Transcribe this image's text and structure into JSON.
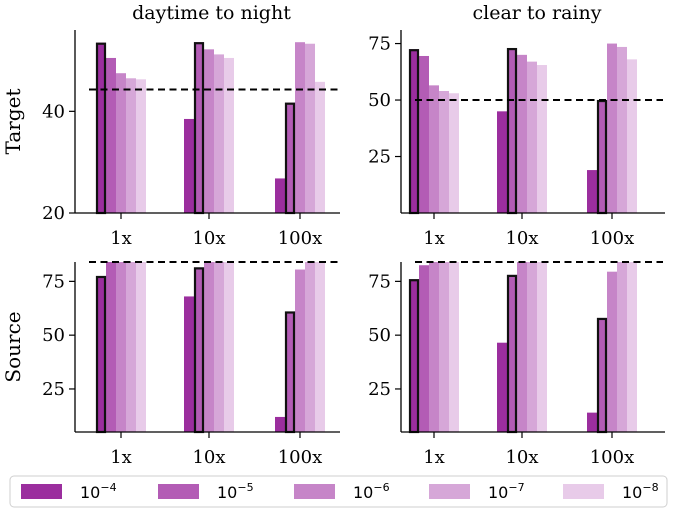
{
  "colors": [
    "#9b2e9e",
    "#b35cb5",
    "#c685c8",
    "#d6a7d8",
    "#e8cbe9"
  ],
  "legend": {
    "entries": [
      {
        "base": "10",
        "exp": "−4"
      },
      {
        "base": "10",
        "exp": "−5"
      },
      {
        "base": "10",
        "exp": "−6"
      },
      {
        "base": "10",
        "exp": "−7"
      },
      {
        "base": "10",
        "exp": "−8"
      }
    ]
  },
  "chart_data": [
    {
      "type": "bar",
      "panel": "top-left",
      "title": "daytime to night",
      "ylabel": "Target",
      "categories": [
        "1x",
        "10x",
        "100x"
      ],
      "ylim": [
        20,
        56
      ],
      "yticks": [
        20,
        40
      ],
      "baseline": 44.3,
      "highlight_series": [
        0,
        1,
        1
      ],
      "series": [
        {
          "values": [
            53.5,
            38.5,
            26.8
          ]
        },
        {
          "values": [
            50.5,
            53.6,
            41.7
          ]
        },
        {
          "values": [
            47.5,
            52.2,
            53.6
          ]
        },
        {
          "values": [
            46.5,
            51.2,
            53.3
          ]
        },
        {
          "values": [
            46.3,
            50.5,
            45.8
          ]
        }
      ]
    },
    {
      "type": "bar",
      "panel": "top-right",
      "title": "clear to rainy",
      "ylabel": "",
      "categories": [
        "1x",
        "10x",
        "100x"
      ],
      "ylim": [
        0,
        81
      ],
      "yticks": [
        25,
        50,
        75
      ],
      "baseline": 50,
      "highlight_series": [
        0,
        1,
        1
      ],
      "series": [
        {
          "values": [
            72.5,
            45,
            19
          ]
        },
        {
          "values": [
            69.5,
            73,
            50
          ]
        },
        {
          "values": [
            56.5,
            70,
            75
          ]
        },
        {
          "values": [
            54,
            67,
            73.5
          ]
        },
        {
          "values": [
            53,
            65.5,
            68
          ]
        }
      ]
    },
    {
      "type": "bar",
      "panel": "bottom-left",
      "title": "",
      "ylabel": "Source",
      "categories": [
        "1x",
        "10x",
        "100x"
      ],
      "ylim": [
        5,
        84
      ],
      "yticks": [
        25,
        50,
        75
      ],
      "baseline": 84,
      "highlight_series": [
        0,
        1,
        1
      ],
      "series": [
        {
          "values": [
            77.5,
            68,
            12
          ]
        },
        {
          "values": [
            84,
            81.5,
            61
          ]
        },
        {
          "values": [
            84,
            84,
            80.5
          ]
        },
        {
          "values": [
            84,
            84,
            84
          ]
        },
        {
          "values": [
            84,
            84,
            84
          ]
        }
      ]
    },
    {
      "type": "bar",
      "panel": "bottom-right",
      "title": "",
      "ylabel": "",
      "categories": [
        "1x",
        "10x",
        "100x"
      ],
      "ylim": [
        5,
        84
      ],
      "yticks": [
        25,
        50,
        75
      ],
      "baseline": 84,
      "highlight_series": [
        0,
        1,
        1
      ],
      "series": [
        {
          "values": [
            76,
            46.5,
            14
          ]
        },
        {
          "values": [
            82.5,
            78,
            58
          ]
        },
        {
          "values": [
            84,
            84,
            79.5
          ]
        },
        {
          "values": [
            84,
            84,
            84
          ]
        },
        {
          "values": [
            84,
            84,
            84
          ]
        }
      ]
    }
  ]
}
